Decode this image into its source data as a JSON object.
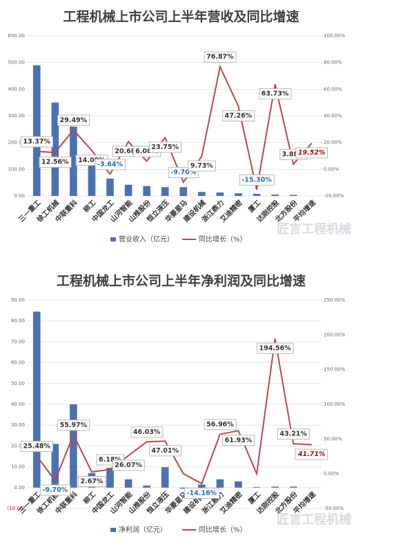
{
  "chart_data": [
    {
      "type": "bar-line",
      "title": "工程机械上市公司上半年营收及同比增速",
      "watermark": "匠言工程机械",
      "categories": [
        "三一重工",
        "徐工机械",
        "中联重科",
        "柳工",
        "中国龙工",
        "山河智能",
        "山推股份",
        "恒立液压",
        "华菱星马",
        "建设机械",
        "浙江鼎力",
        "艾迪精密",
        "厦工",
        "达刚控股",
        "北方股份",
        "平均增速"
      ],
      "series": [
        {
          "name": "营业收入（亿元）",
          "color": "#4a72b2",
          "type": "bar",
          "values": [
            490,
            350,
            260,
            115,
            65,
            42,
            37,
            33,
            33,
            15,
            13,
            10,
            8,
            5,
            4,
            null
          ]
        },
        {
          "name": "同比增长（%）",
          "color": "#b94747",
          "type": "line",
          "axis": "y2",
          "values": [
            13.37,
            12.56,
            29.49,
            14.0,
            -3.64,
            20.68,
            6.08,
            23.75,
            -9.7,
            9.73,
            76.87,
            47.26,
            -15.3,
            63.73,
            3.88,
            19.52
          ],
          "value_labels": [
            "13.37%",
            "12.56%",
            "29.49%",
            "14.00%",
            "-3.64%",
            "20.68%",
            "6.08%",
            "23.75%",
            "-9.70%",
            "9.73%",
            "76.87%",
            "47.26%",
            "-15.30%",
            "63.73%",
            "3.88%",
            "19.52%"
          ]
        }
      ],
      "ylim": [
        0,
        600
      ],
      "yticks": [
        {
          "value": 0,
          "label": "0.00"
        },
        {
          "value": 100,
          "label": "100.00"
        },
        {
          "value": 200,
          "label": "200.00"
        },
        {
          "value": 300,
          "label": "300.00"
        },
        {
          "value": 400,
          "label": "400.00"
        },
        {
          "value": 500,
          "label": "500.00"
        },
        {
          "value": 600,
          "label": "600.00"
        }
      ],
      "y2lim": [
        -20,
        100
      ],
      "y2ticks": [
        {
          "value": -20,
          "label": "-20.00%"
        },
        {
          "value": 0,
          "label": "0.00%"
        },
        {
          "value": 20,
          "label": "20.00%"
        },
        {
          "value": 40,
          "label": "40.00%"
        },
        {
          "value": 60,
          "label": "60.00%"
        },
        {
          "value": 80,
          "label": "80.00%"
        },
        {
          "value": 100,
          "label": "100.00%"
        }
      ]
    },
    {
      "type": "bar-line",
      "title": "工程机械上市公司上半年净利润及同比增速",
      "watermark": "匠言工程机械",
      "categories": [
        "三一重工",
        "徐工机械",
        "中联重科",
        "柳工",
        "中国龙工",
        "山河智能",
        "山推股份",
        "恒立液压",
        "华菱星马",
        "建设机械",
        "浙江鼎力",
        "艾迪精密",
        "厦工",
        "达刚控股",
        "北方股份",
        "平均增速"
      ],
      "series": [
        {
          "name": "净利润（亿元）",
          "color": "#4a72b2",
          "type": "bar",
          "values": [
            84.5,
            21,
            40,
            7,
            9.5,
            4,
            1,
            9.8,
            -0.5,
            1.5,
            4,
            3,
            0.3,
            0.5,
            0.5,
            null
          ]
        },
        {
          "name": "同比增长（%）",
          "color": "#b94747",
          "type": "line",
          "axis": "y2",
          "values": [
            25.48,
            -9.7,
            55.97,
            2.67,
            6.18,
            26.07,
            46.03,
            47.01,
            0,
            -14.16,
            56.96,
            61.93,
            0,
            194.56,
            43.21,
            41.71
          ],
          "value_labels": [
            "25.48%",
            "-9.70%",
            "55.97%",
            "2.67%",
            "6.18%",
            "26.07%",
            "46.03%",
            "47.01%",
            null,
            "-14.16%",
            "56.96%",
            "61.93%",
            null,
            "194.56%",
            "43.21%",
            "41.71%"
          ]
        }
      ],
      "ylim": [
        -10,
        90
      ],
      "yticks": [
        {
          "value": -10,
          "label": "(10.00)"
        },
        {
          "value": 0,
          "label": "0.00"
        },
        {
          "value": 10,
          "label": "10.00"
        },
        {
          "value": 20,
          "label": "20.00"
        },
        {
          "value": 30,
          "label": "30.00"
        },
        {
          "value": 40,
          "label": "40.00"
        },
        {
          "value": 50,
          "label": "50.00"
        },
        {
          "value": 60,
          "label": "60.00"
        },
        {
          "value": 70,
          "label": "70.00"
        },
        {
          "value": 80,
          "label": "80.00"
        },
        {
          "value": 90,
          "label": "90.00"
        }
      ],
      "y2lim": [
        -50,
        250
      ],
      "y2ticks": [
        {
          "value": -50,
          "label": "-50.00%"
        },
        {
          "value": 0,
          "label": "0.00%"
        },
        {
          "value": 50,
          "label": "50.00%"
        },
        {
          "value": 100,
          "label": "100.00%"
        },
        {
          "value": 150,
          "label": "150.00%"
        },
        {
          "value": 200,
          "label": "200.00%"
        },
        {
          "value": 250,
          "label": "250.00%"
        }
      ]
    }
  ]
}
